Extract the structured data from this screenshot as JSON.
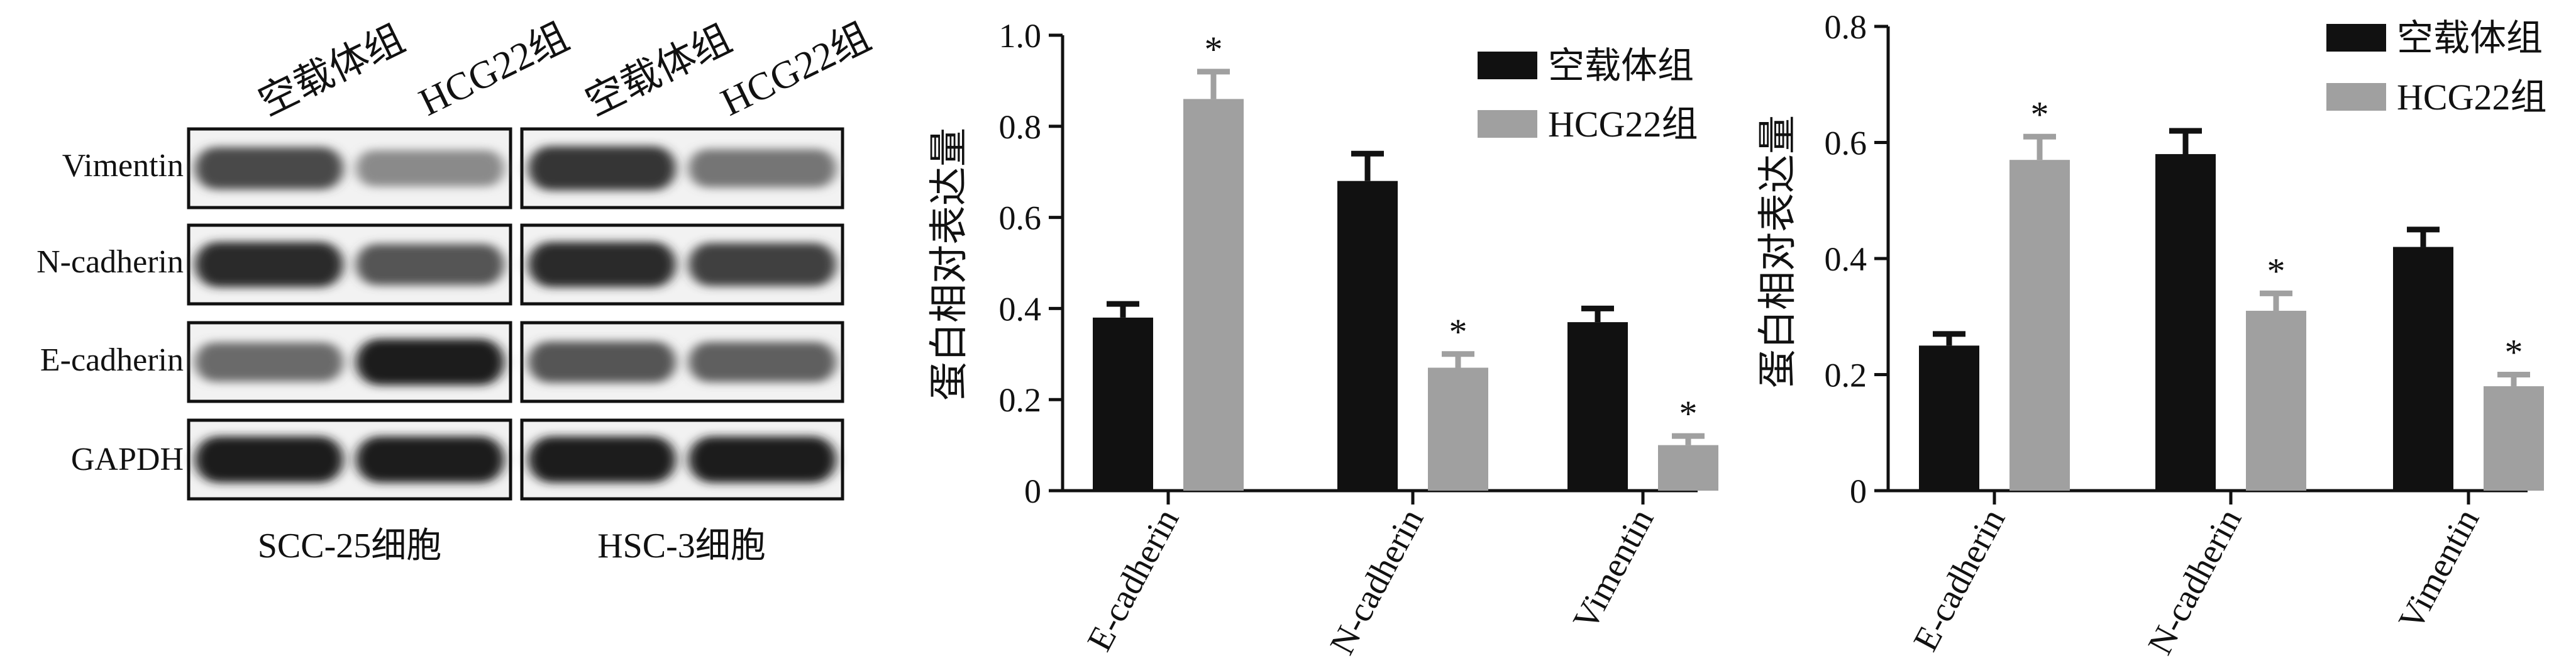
{
  "western_blot": {
    "lane_labels": [
      "空载体组",
      "HCG22组",
      "空载体组",
      "HCG22组"
    ],
    "row_labels": [
      "Vimentin",
      "N-cadherin",
      "E-cadherin",
      "GAPDH"
    ],
    "cell_labels": [
      "SCC-25细胞",
      "HSC-3细胞"
    ],
    "band_intensity": [
      [
        [
          0.75,
          0.45
        ],
        [
          0.85,
          0.55
        ]
      ],
      [
        [
          0.9,
          0.7
        ],
        [
          0.9,
          0.8
        ]
      ],
      [
        [
          0.6,
          0.95
        ],
        [
          0.7,
          0.65
        ]
      ],
      [
        [
          0.95,
          0.95
        ],
        [
          0.95,
          0.95
        ]
      ]
    ]
  },
  "chart_data": [
    {
      "type": "bar",
      "categories": [
        "E-cadherin",
        "N-cadherin",
        "Vimentin"
      ],
      "series": [
        {
          "name": "空载体组",
          "color": "#111111",
          "values": [
            0.38,
            0.68,
            0.37
          ],
          "errors": [
            0.03,
            0.06,
            0.03
          ],
          "significant": [
            false,
            false,
            false
          ]
        },
        {
          "name": "HCG22组",
          "color": "#a0a0a0",
          "values": [
            0.86,
            0.27,
            0.1
          ],
          "errors": [
            0.06,
            0.03,
            0.02
          ],
          "significant": [
            true,
            true,
            true
          ]
        }
      ],
      "ylabel": "蛋白相对表达量",
      "ylim": [
        0,
        1.0
      ],
      "yticks": [
        "0",
        "0.2",
        "0.4",
        "0.6",
        "0.8",
        "1.0"
      ],
      "significance_marker": "*",
      "legend_position": "top-right",
      "grid": false
    },
    {
      "type": "bar",
      "categories": [
        "E-cadherin",
        "N-cadherin",
        "Vimentin"
      ],
      "series": [
        {
          "name": "空载体组",
          "color": "#111111",
          "values": [
            0.25,
            0.58,
            0.42
          ],
          "errors": [
            0.02,
            0.04,
            0.03
          ],
          "significant": [
            false,
            false,
            false
          ]
        },
        {
          "name": "HCG22组",
          "color": "#a0a0a0",
          "values": [
            0.57,
            0.31,
            0.18
          ],
          "errors": [
            0.04,
            0.03,
            0.02
          ],
          "significant": [
            true,
            true,
            true
          ]
        }
      ],
      "ylabel": "蛋白相对表达量",
      "ylim": [
        0,
        0.8
      ],
      "yticks": [
        "0",
        "0.2",
        "0.4",
        "0.6",
        "0.8"
      ],
      "significance_marker": "*",
      "legend_position": "top-right",
      "grid": false
    }
  ]
}
